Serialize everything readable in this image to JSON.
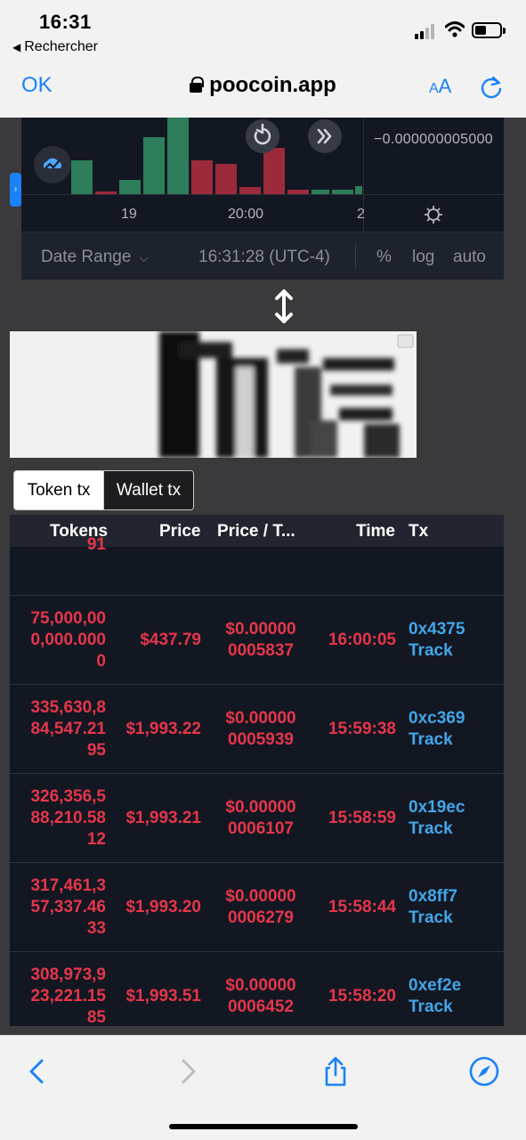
{
  "status_bar": {
    "time": "16:31",
    "back_label": "Rechercher",
    "back_icon": "back-triangle-icon"
  },
  "browser": {
    "done_label": "OK",
    "url": "poocoin.app",
    "text_size_label_small": "A",
    "text_size_label_big": "A",
    "accent_color": "#1a82f6"
  },
  "chart": {
    "price_label": "−0.000000005000",
    "x_ticks": [
      "19",
      "20:00",
      "2"
    ],
    "colors": {
      "up": "#2e7d5b",
      "down": "#9b2a3a",
      "background": "#131722"
    }
  },
  "chart_toolbar": {
    "date_range_label": "Date Range",
    "time_label": "16:31:28 (UTC-4)",
    "percent_label": "%",
    "log_label": "log",
    "auto_label": "auto"
  },
  "tabs": [
    {
      "label": "Token tx",
      "active": true
    },
    {
      "label": "Wallet tx",
      "active": false
    }
  ],
  "table": {
    "headers": {
      "tokens": "Tokens",
      "price": "Price",
      "price_per_token": "Price / T...",
      "time": "Time",
      "tx": "Tx"
    },
    "partial_row_text": "91",
    "rows": [
      {
        "tokens": "75,000,00\n0,000.000\n0",
        "price": "$437.79",
        "price_per_token": "$0.00000\n0005837",
        "time": "16:00:05",
        "tx_hash": "0x4375",
        "track": "Track"
      },
      {
        "tokens": "335,630,8\n84,547.21\n95",
        "price": "$1,993.22",
        "price_per_token": "$0.00000\n0005939",
        "time": "15:59:38",
        "tx_hash": "0xc369",
        "track": "Track"
      },
      {
        "tokens": "326,356,5\n88,210.58\n12",
        "price": "$1,993.21",
        "price_per_token": "$0.00000\n0006107",
        "time": "15:58:59",
        "tx_hash": "0x19ec",
        "track": "Track"
      },
      {
        "tokens": "317,461,3\n57,337.46\n33",
        "price": "$1,993.20",
        "price_per_token": "$0.00000\n0006279",
        "time": "15:58:44",
        "tx_hash": "0x8ff7",
        "track": "Track"
      },
      {
        "tokens": "308,973,9\n23,221.15\n85",
        "price": "$1,993.51",
        "price_per_token": "$0.00000\n0006452",
        "time": "15:58:20",
        "tx_hash": "0xef2e",
        "track": "Track"
      }
    ],
    "colors": {
      "sell": "#e5364a",
      "link": "#41a6e8"
    }
  }
}
